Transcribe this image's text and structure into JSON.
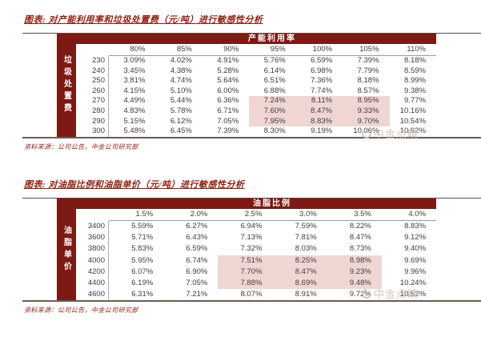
{
  "colors": {
    "accent": "#7c1a13",
    "highlight_pink": "#f0d6d3",
    "title_red": "#8e1f12",
    "body_text": "#3d3d3d",
    "watermark_gray": "#c9c3bf"
  },
  "watermark": {
    "text": "中金点睛",
    "icon": "swoosh-circle-logo"
  },
  "sources": [
    "资料来源：公司公告，中金公司研究部",
    "资料来源：公司公告，中金公司研究部"
  ],
  "chart_data": [
    {
      "type": "table",
      "title": "图表: 对产能利用率和垃圾处置费（元/吨）进行敏感性分析",
      "column_group_label": "产能利用率",
      "row_group_label": "垃圾处置费",
      "columns": [
        "80%",
        "85%",
        "90%",
        "95%",
        "100%",
        "105%",
        "110%"
      ],
      "row_labels": [
        "230",
        "240",
        "250",
        "260",
        "270",
        "280",
        "290",
        "300"
      ],
      "rows": [
        [
          "3.09%",
          "4.02%",
          "4.91%",
          "5.76%",
          "6.59%",
          "7.39%",
          "8.18%"
        ],
        [
          "3.45%",
          "4.38%",
          "5.28%",
          "6.14%",
          "6.98%",
          "7.79%",
          "8.59%"
        ],
        [
          "3.81%",
          "4.74%",
          "5.64%",
          "6.51%",
          "7.36%",
          "8.18%",
          "8.99%"
        ],
        [
          "4.15%",
          "5.10%",
          "6.00%",
          "6.88%",
          "7.74%",
          "8.57%",
          "9.38%"
        ],
        [
          "4.49%",
          "5.44%",
          "6.36%",
          "7.24%",
          "8.11%",
          "8.95%",
          "9.77%"
        ],
        [
          "4.83%",
          "5.78%",
          "6.71%",
          "7.60%",
          "8.47%",
          "9.33%",
          "10.16%"
        ],
        [
          "5.15%",
          "6.12%",
          "7.05%",
          "7.95%",
          "8.83%",
          "9.70%",
          "10.54%"
        ],
        [
          "5.48%",
          "6.45%",
          "7.39%",
          "8.30%",
          "9.19%",
          "10.06%",
          "10.92%"
        ]
      ],
      "highlight": {
        "row_indices": [
          4,
          5,
          6
        ],
        "col_indices": [
          3,
          4,
          5
        ]
      }
    },
    {
      "type": "table",
      "title": "图表: 对油脂比例和油脂单价（元/吨）进行敏感性分析",
      "column_group_label": "油脂比例",
      "row_group_label": "油脂单价",
      "columns": [
        "1.5%",
        "2.0%",
        "2.5%",
        "3.0%",
        "3.5%",
        "4.0%"
      ],
      "row_labels": [
        "3400",
        "3600",
        "3800",
        "4000",
        "4200",
        "4400",
        "4600"
      ],
      "rows": [
        [
          "5.59%",
          "6.27%",
          "6.94%",
          "7.59%",
          "8.22%",
          "8.83%"
        ],
        [
          "5.71%",
          "6.43%",
          "7.13%",
          "7.81%",
          "8.47%",
          "9.12%"
        ],
        [
          "5.83%",
          "6.59%",
          "7.32%",
          "8.03%",
          "8.73%",
          "9.40%"
        ],
        [
          "5.95%",
          "6.74%",
          "7.51%",
          "8.25%",
          "8.98%",
          "9.69%"
        ],
        [
          "6.07%",
          "6.90%",
          "7.70%",
          "8.47%",
          "9.23%",
          "9.96%"
        ],
        [
          "6.19%",
          "7.05%",
          "7.88%",
          "8.69%",
          "9.48%",
          "10.24%"
        ],
        [
          "6.31%",
          "7.21%",
          "8.07%",
          "8.91%",
          "9.72%",
          "10.52%"
        ]
      ],
      "highlight": {
        "row_indices": [
          3,
          4,
          5
        ],
        "col_indices": [
          2,
          3,
          4
        ]
      }
    }
  ]
}
